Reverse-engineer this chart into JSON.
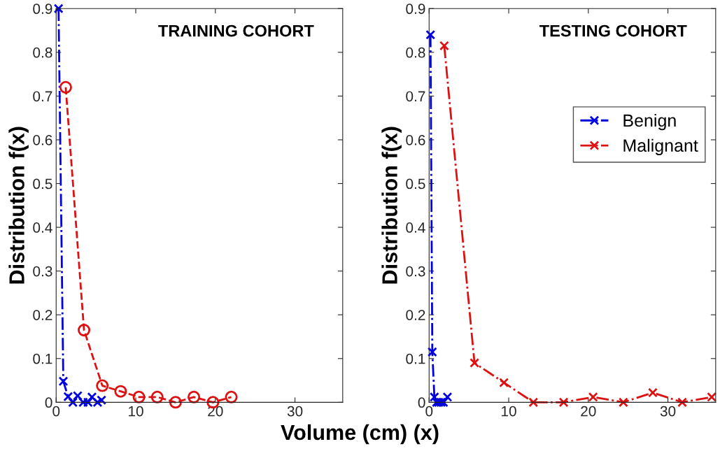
{
  "chart_data": [
    {
      "type": "line",
      "title": "TRAINING COHORT",
      "ylabel": "Distribution f(x)",
      "xlabel": "Volume (cm) (x)",
      "xlim": [
        0,
        36
      ],
      "xticks": [
        0,
        10,
        20,
        30
      ],
      "ylim": [
        0,
        0.9
      ],
      "yticks": [
        0,
        0.1,
        0.2,
        0.3,
        0.4,
        0.5,
        0.6,
        0.7,
        0.8,
        0.9
      ],
      "grid": false,
      "legend": false,
      "series": [
        {
          "color": "#0000e0",
          "marker": "cross",
          "line_style": "dashdot",
          "x": [
            0.3,
            0.9,
            1.5,
            2.1,
            2.7,
            3.4,
            4.0,
            4.5,
            5.2,
            5.7
          ],
          "values": [
            0.9,
            0.048,
            0.013,
            0,
            0.015,
            0,
            0,
            0.012,
            0,
            0.005
          ]
        },
        {
          "color": "#dd1111",
          "marker": "circle",
          "line_style": "dashed",
          "x": [
            1.2,
            3.5,
            5.8,
            8.1,
            10.4,
            12.7,
            15.0,
            17.3,
            19.7,
            22.0
          ],
          "values": [
            0.72,
            0.165,
            0.038,
            0.025,
            0.012,
            0.012,
            0,
            0.012,
            0,
            0.012
          ]
        }
      ]
    },
    {
      "type": "line",
      "title": "TESTING COHORT",
      "ylabel": "Distribution f(x)",
      "xlim": [
        0,
        36
      ],
      "xticks": [
        0,
        10,
        20,
        30
      ],
      "ylim": [
        0,
        0.9
      ],
      "yticks": [
        0,
        0.1,
        0.2,
        0.3,
        0.4,
        0.5,
        0.6,
        0.7,
        0.8,
        0.9
      ],
      "grid": false,
      "legend": "right",
      "series": [
        {
          "name": "Benign",
          "color": "#0000e0",
          "marker": "cross",
          "line_style": "dashdot",
          "x": [
            0.17,
            0.4,
            0.66,
            0.94,
            1.2,
            1.5,
            1.8,
            2.0,
            2.3
          ],
          "values": [
            0.84,
            0.115,
            0.012,
            0,
            0,
            0,
            0,
            null,
            0.012
          ]
        },
        {
          "name": "Malignant",
          "color": "#dd1111",
          "marker": "cross",
          "line_style": "dashdot",
          "x": [
            1.9,
            5.7,
            9.4,
            13.1,
            16.9,
            20.6,
            24.4,
            28.1,
            31.8,
            35.5
          ],
          "values": [
            0.815,
            0.09,
            0.045,
            0,
            0,
            0.012,
            0,
            0.022,
            0,
            0.012
          ]
        }
      ]
    }
  ]
}
